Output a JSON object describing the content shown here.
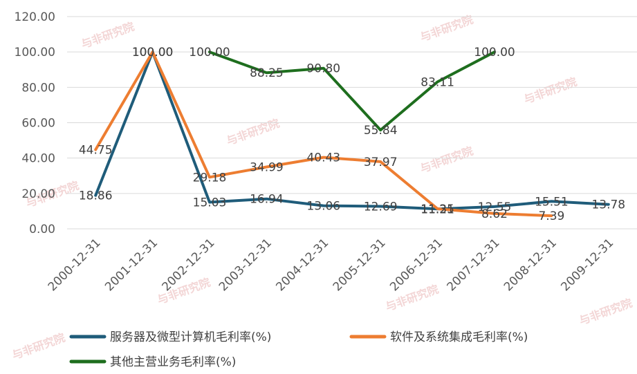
{
  "chart_data": {
    "type": "line",
    "categories": [
      "2000-12-31",
      "2001-12-31",
      "2002-12-31",
      "2003-12-31",
      "2004-12-31",
      "2005-12-31",
      "2006-12-31",
      "2007-12-31",
      "2008-12-31",
      "2009-12-31"
    ],
    "ylim": [
      0,
      120
    ],
    "yticks": [
      "0.00",
      "20.00",
      "40.00",
      "60.00",
      "80.00",
      "100.00",
      "120.00"
    ],
    "grid": true,
    "legend_position": "bottom",
    "series": [
      {
        "name": "服务器及微型计算机毛利率(%)",
        "color": "#1f5c7a",
        "values": [
          18.86,
          100.0,
          15.03,
          16.94,
          13.06,
          12.69,
          11.21,
          12.55,
          15.51,
          13.78
        ],
        "labels": [
          "18.86",
          "100.00",
          "15.03",
          "16.94",
          "13.06",
          "12.69",
          "11.21",
          "12.55",
          "15.51",
          "13.78"
        ]
      },
      {
        "name": "软件及系统集成毛利率(%)",
        "color": "#ed7d31",
        "values": [
          44.75,
          100.0,
          29.18,
          34.99,
          40.43,
          37.97,
          11.35,
          8.62,
          7.39,
          null
        ],
        "labels": [
          "44.75",
          "100.00",
          "29.18",
          "34.99",
          "40.43",
          "37.97",
          "11.35",
          "8.62",
          "7.39",
          null
        ]
      },
      {
        "name": "其他主营业务毛利率(%)",
        "color": "#1e6e1e",
        "values": [
          null,
          null,
          100.0,
          88.25,
          90.8,
          55.84,
          83.11,
          100.0,
          null,
          null
        ],
        "labels": [
          null,
          null,
          "100.00",
          "88.25",
          "90.80",
          "55.84",
          "83.11",
          "100.00",
          null,
          null
        ]
      }
    ]
  },
  "watermark": "与非研究院"
}
